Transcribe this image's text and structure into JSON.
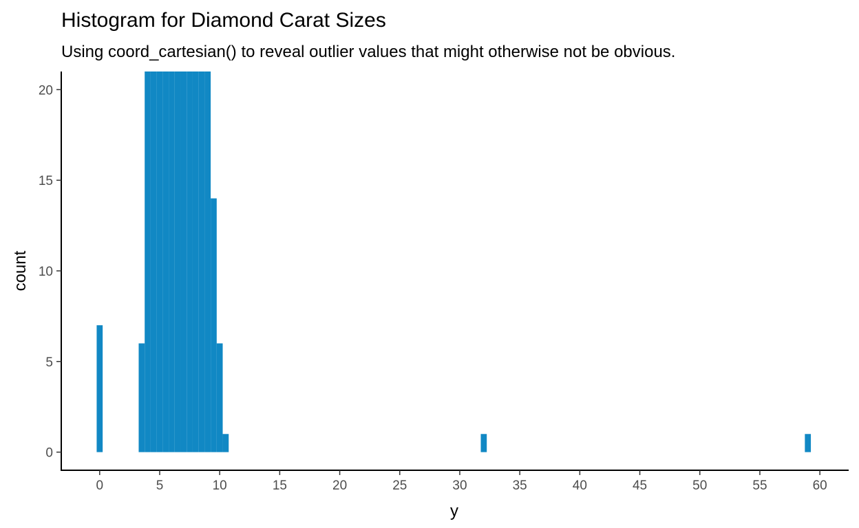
{
  "chart_data": {
    "type": "bar",
    "title": "Histogram for Diamond Carat Sizes",
    "subtitle": "Using coord_cartesian() to reveal outlier values that might otherwise not be obvious.",
    "xlabel": "y",
    "ylabel": "count",
    "xlim": [
      -3.2,
      62.4
    ],
    "ylim": [
      -1,
      21
    ],
    "xticks": [
      0,
      5,
      10,
      15,
      20,
      25,
      30,
      35,
      40,
      45,
      50,
      55,
      60
    ],
    "yticks": [
      0,
      5,
      10,
      15,
      20
    ],
    "bin_width": 0.5,
    "bins": [
      {
        "x": 0.0,
        "count": 7
      },
      {
        "x": 3.5,
        "count": 6
      },
      {
        "x": 4.0,
        "count": 21
      },
      {
        "x": 4.5,
        "count": 21
      },
      {
        "x": 5.0,
        "count": 21
      },
      {
        "x": 5.5,
        "count": 21
      },
      {
        "x": 6.0,
        "count": 21
      },
      {
        "x": 6.5,
        "count": 21
      },
      {
        "x": 7.0,
        "count": 21
      },
      {
        "x": 7.5,
        "count": 21
      },
      {
        "x": 8.0,
        "count": 21
      },
      {
        "x": 8.5,
        "count": 21
      },
      {
        "x": 9.0,
        "count": 21
      },
      {
        "x": 9.5,
        "count": 14
      },
      {
        "x": 10.0,
        "count": 6
      },
      {
        "x": 10.5,
        "count": 1
      },
      {
        "x": 32.0,
        "count": 1
      },
      {
        "x": 59.0,
        "count": 1
      }
    ],
    "bar_color": "#1188c4",
    "grid": false,
    "legend": "none"
  }
}
